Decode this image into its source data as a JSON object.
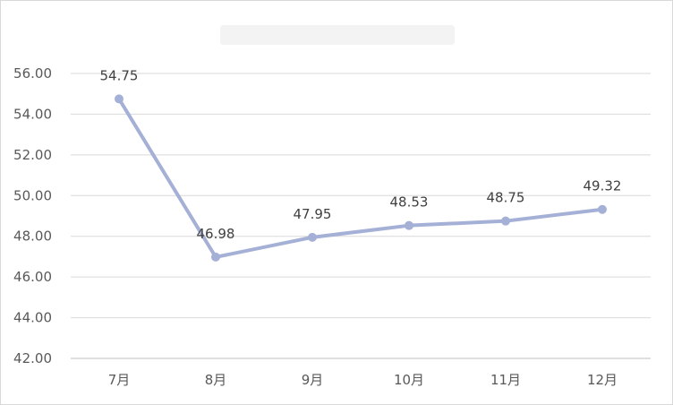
{
  "chart_data": {
    "type": "line",
    "title": "",
    "xlabel": "",
    "ylabel": "",
    "categories": [
      "7月",
      "8月",
      "9月",
      "10月",
      "11月",
      "12月"
    ],
    "series": [
      {
        "values": [
          54.75,
          46.98,
          47.95,
          48.53,
          48.75,
          49.32
        ]
      }
    ],
    "ylim": [
      42.0,
      56.0
    ],
    "yticks": [
      "42.00",
      "44.00",
      "46.00",
      "48.00",
      "50.00",
      "52.00",
      "54.00",
      "56.00"
    ],
    "data_labels": [
      "54.75",
      "46.98",
      "47.95",
      "48.53",
      "48.75",
      "49.32"
    ],
    "grid": "horizontal",
    "legend": "none",
    "colors": {
      "line": "#a5b0d6",
      "marker": "#a5b0d6",
      "grid": "#d9d9d9",
      "axis": "#bfbfbf",
      "tick_text": "#595959",
      "label_text": "#404040"
    }
  }
}
